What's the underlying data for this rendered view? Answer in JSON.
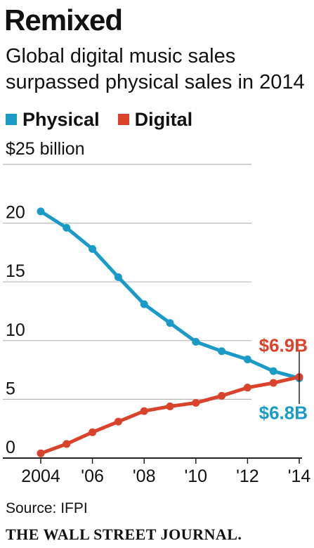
{
  "header": {
    "title": "Remixed",
    "subtitle": "Global digital music sales surpassed physical sales in 2014"
  },
  "legend": [
    {
      "label": "Physical",
      "color": "#1a9bc7"
    },
    {
      "label": "Digital",
      "color": "#d9432b"
    }
  ],
  "footer": {
    "source": "Source: IFPI",
    "publisher": "THE WALL STREET JOURNAL."
  },
  "chart_data": {
    "type": "line",
    "unit_label": "$25 billion",
    "x": [
      2004,
      2005,
      2006,
      2007,
      2008,
      2009,
      2010,
      2011,
      2012,
      2013,
      2014
    ],
    "x_tick_values": [
      2004,
      2006,
      2008,
      2010,
      2012,
      2014
    ],
    "x_tick_labels": [
      "2004",
      "'06",
      "'08",
      "'10",
      "'12",
      "'14"
    ],
    "y_tick_values": [
      0,
      5,
      10,
      15,
      20,
      25
    ],
    "y_tick_labels": [
      "0",
      "5",
      "10",
      "15",
      "20",
      ""
    ],
    "ylim": [
      0,
      25
    ],
    "xlim": [
      2004,
      2014
    ],
    "grid": "horizontal",
    "series": [
      {
        "name": "Physical",
        "color": "#1a9bc7",
        "values": [
          21.0,
          19.6,
          17.8,
          15.4,
          13.1,
          11.5,
          9.9,
          9.1,
          8.4,
          7.4,
          6.8
        ],
        "end_label": "$6.8B"
      },
      {
        "name": "Digital",
        "color": "#d9432b",
        "values": [
          0.4,
          1.2,
          2.2,
          3.1,
          4.0,
          4.4,
          4.7,
          5.3,
          6.0,
          6.4,
          6.9
        ],
        "end_label": "$6.9B"
      }
    ]
  }
}
